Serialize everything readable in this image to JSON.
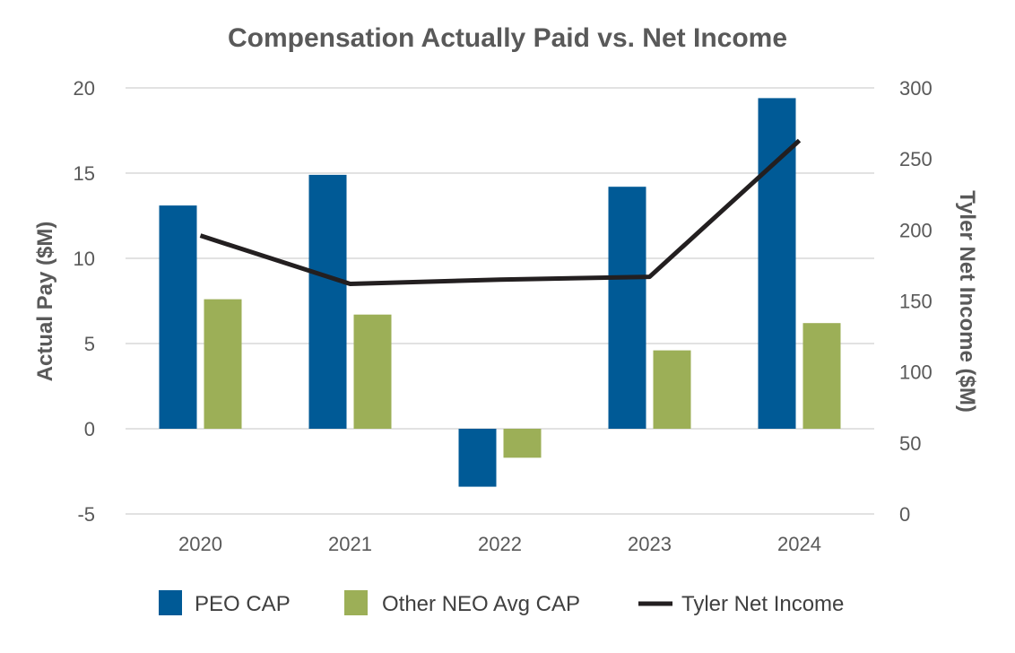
{
  "chart_data": {
    "type": "bar",
    "title": "Compensation Actually Paid vs. Net Income",
    "categories": [
      "2020",
      "2021",
      "2022",
      "2023",
      "2024"
    ],
    "series": [
      {
        "name": "PEO CAP",
        "type": "bar",
        "axis": "left",
        "color": "#005a96",
        "values": [
          13.1,
          14.9,
          -3.4,
          14.2,
          19.4
        ]
      },
      {
        "name": "Other NEO Avg CAP",
        "type": "bar",
        "axis": "left",
        "color": "#9caf57",
        "values": [
          7.6,
          6.7,
          -1.7,
          4.6,
          6.2
        ]
      },
      {
        "name": "Tyler Net Income",
        "type": "line",
        "axis": "right",
        "color": "#231f20",
        "values": [
          196,
          162,
          165,
          167,
          263
        ]
      }
    ],
    "ylabel": "Actual Pay ($M)",
    "y2label": "Tyler Net Income ($M)",
    "ylim": [
      -5,
      20
    ],
    "yticks": [
      "-5",
      "0",
      "5",
      "10",
      "15",
      "20"
    ],
    "y2lim": [
      0,
      300
    ],
    "y2ticks": [
      "0",
      "50",
      "100",
      "150",
      "200",
      "250",
      "300"
    ],
    "grid": true,
    "legend": "bottom"
  }
}
